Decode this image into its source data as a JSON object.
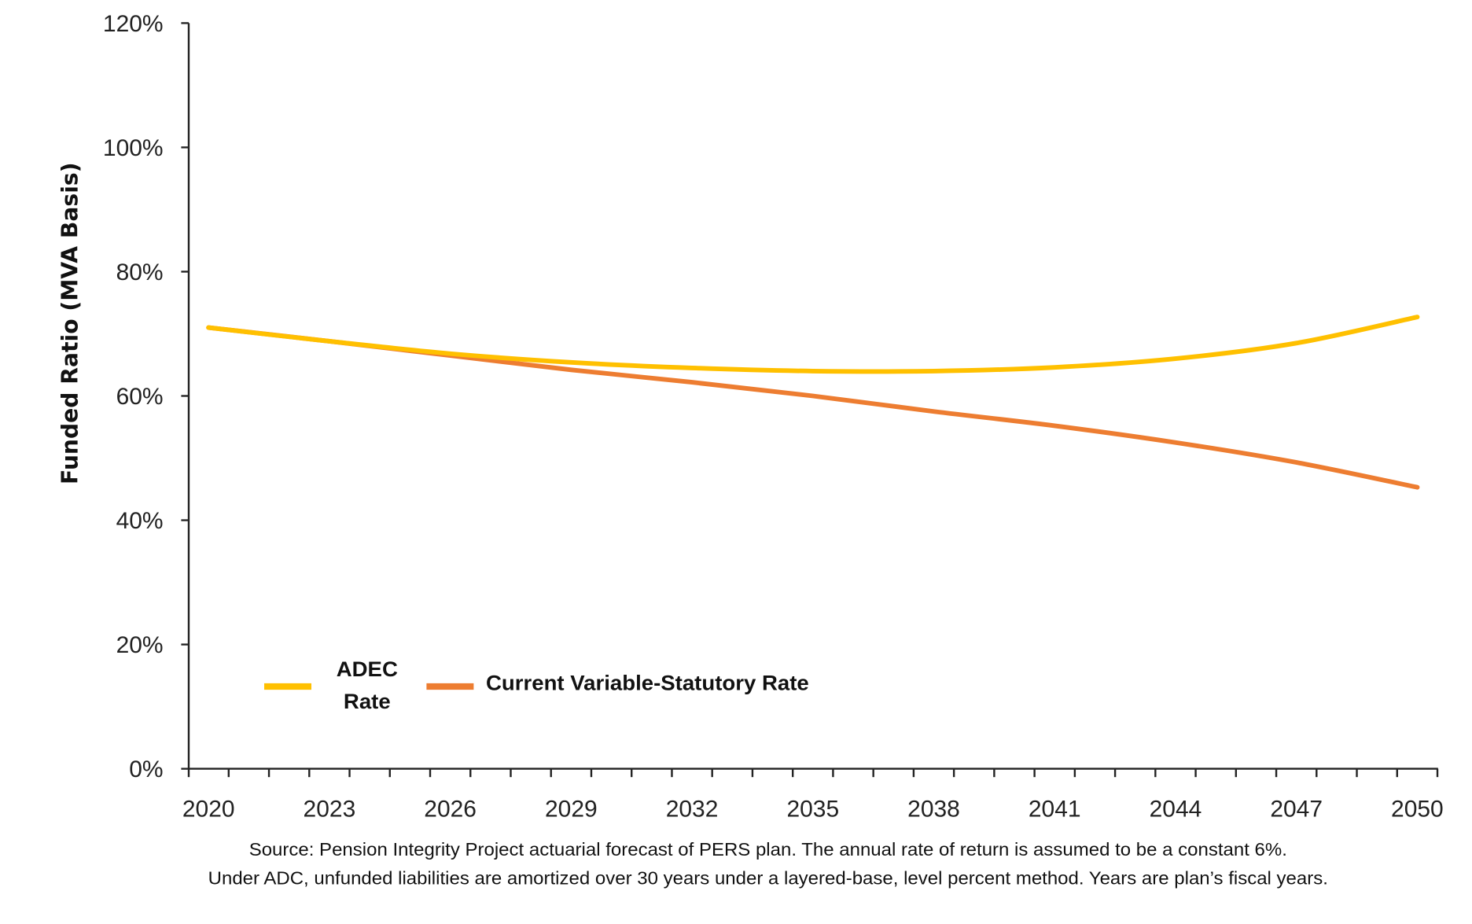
{
  "chart_data": {
    "type": "line",
    "title": "",
    "xlabel": "",
    "ylabel": "Funded Ratio (MVA Basis)",
    "x": [
      2020,
      2023,
      2026,
      2029,
      2032,
      2035,
      2038,
      2041,
      2044,
      2047,
      2050
    ],
    "x_tick_labels": [
      "2020",
      "2023",
      "2026",
      "2029",
      "2032",
      "2035",
      "2038",
      "2041",
      "2044",
      "2047",
      "2050"
    ],
    "y_tick_labels": [
      "0%",
      "20%",
      "40%",
      "60%",
      "80%",
      "100%",
      "120%"
    ],
    "y_ticks": [
      0,
      20,
      40,
      60,
      80,
      100,
      120
    ],
    "ylim": [
      0,
      120
    ],
    "xlim": [
      2020,
      2050
    ],
    "grid": false,
    "legend_placement": "bottom-left",
    "series": [
      {
        "name": "ADEC Rate",
        "legend_lines": [
          "ADEC",
          "Rate"
        ],
        "color": "#FFC000",
        "values": [
          71.0,
          68.8,
          66.8,
          65.4,
          64.5,
          64.0,
          64.0,
          64.6,
          66.0,
          68.5,
          72.7
        ]
      },
      {
        "name": "Current Variable-Statutory Rate",
        "color": "#ED7D31",
        "values": [
          71.0,
          68.8,
          66.5,
          64.2,
          62.2,
          60.0,
          57.5,
          55.2,
          52.5,
          49.3,
          45.3
        ]
      }
    ],
    "source_lines": [
      "Source: Pension Integrity Project actuarial forecast of PERS plan. The annual rate of return is assumed to be a constant 6%.",
      "Under ADC, unfunded liabilities are amortized over 30 years under a layered-base, level percent method. Years are plan’s fiscal years."
    ]
  }
}
